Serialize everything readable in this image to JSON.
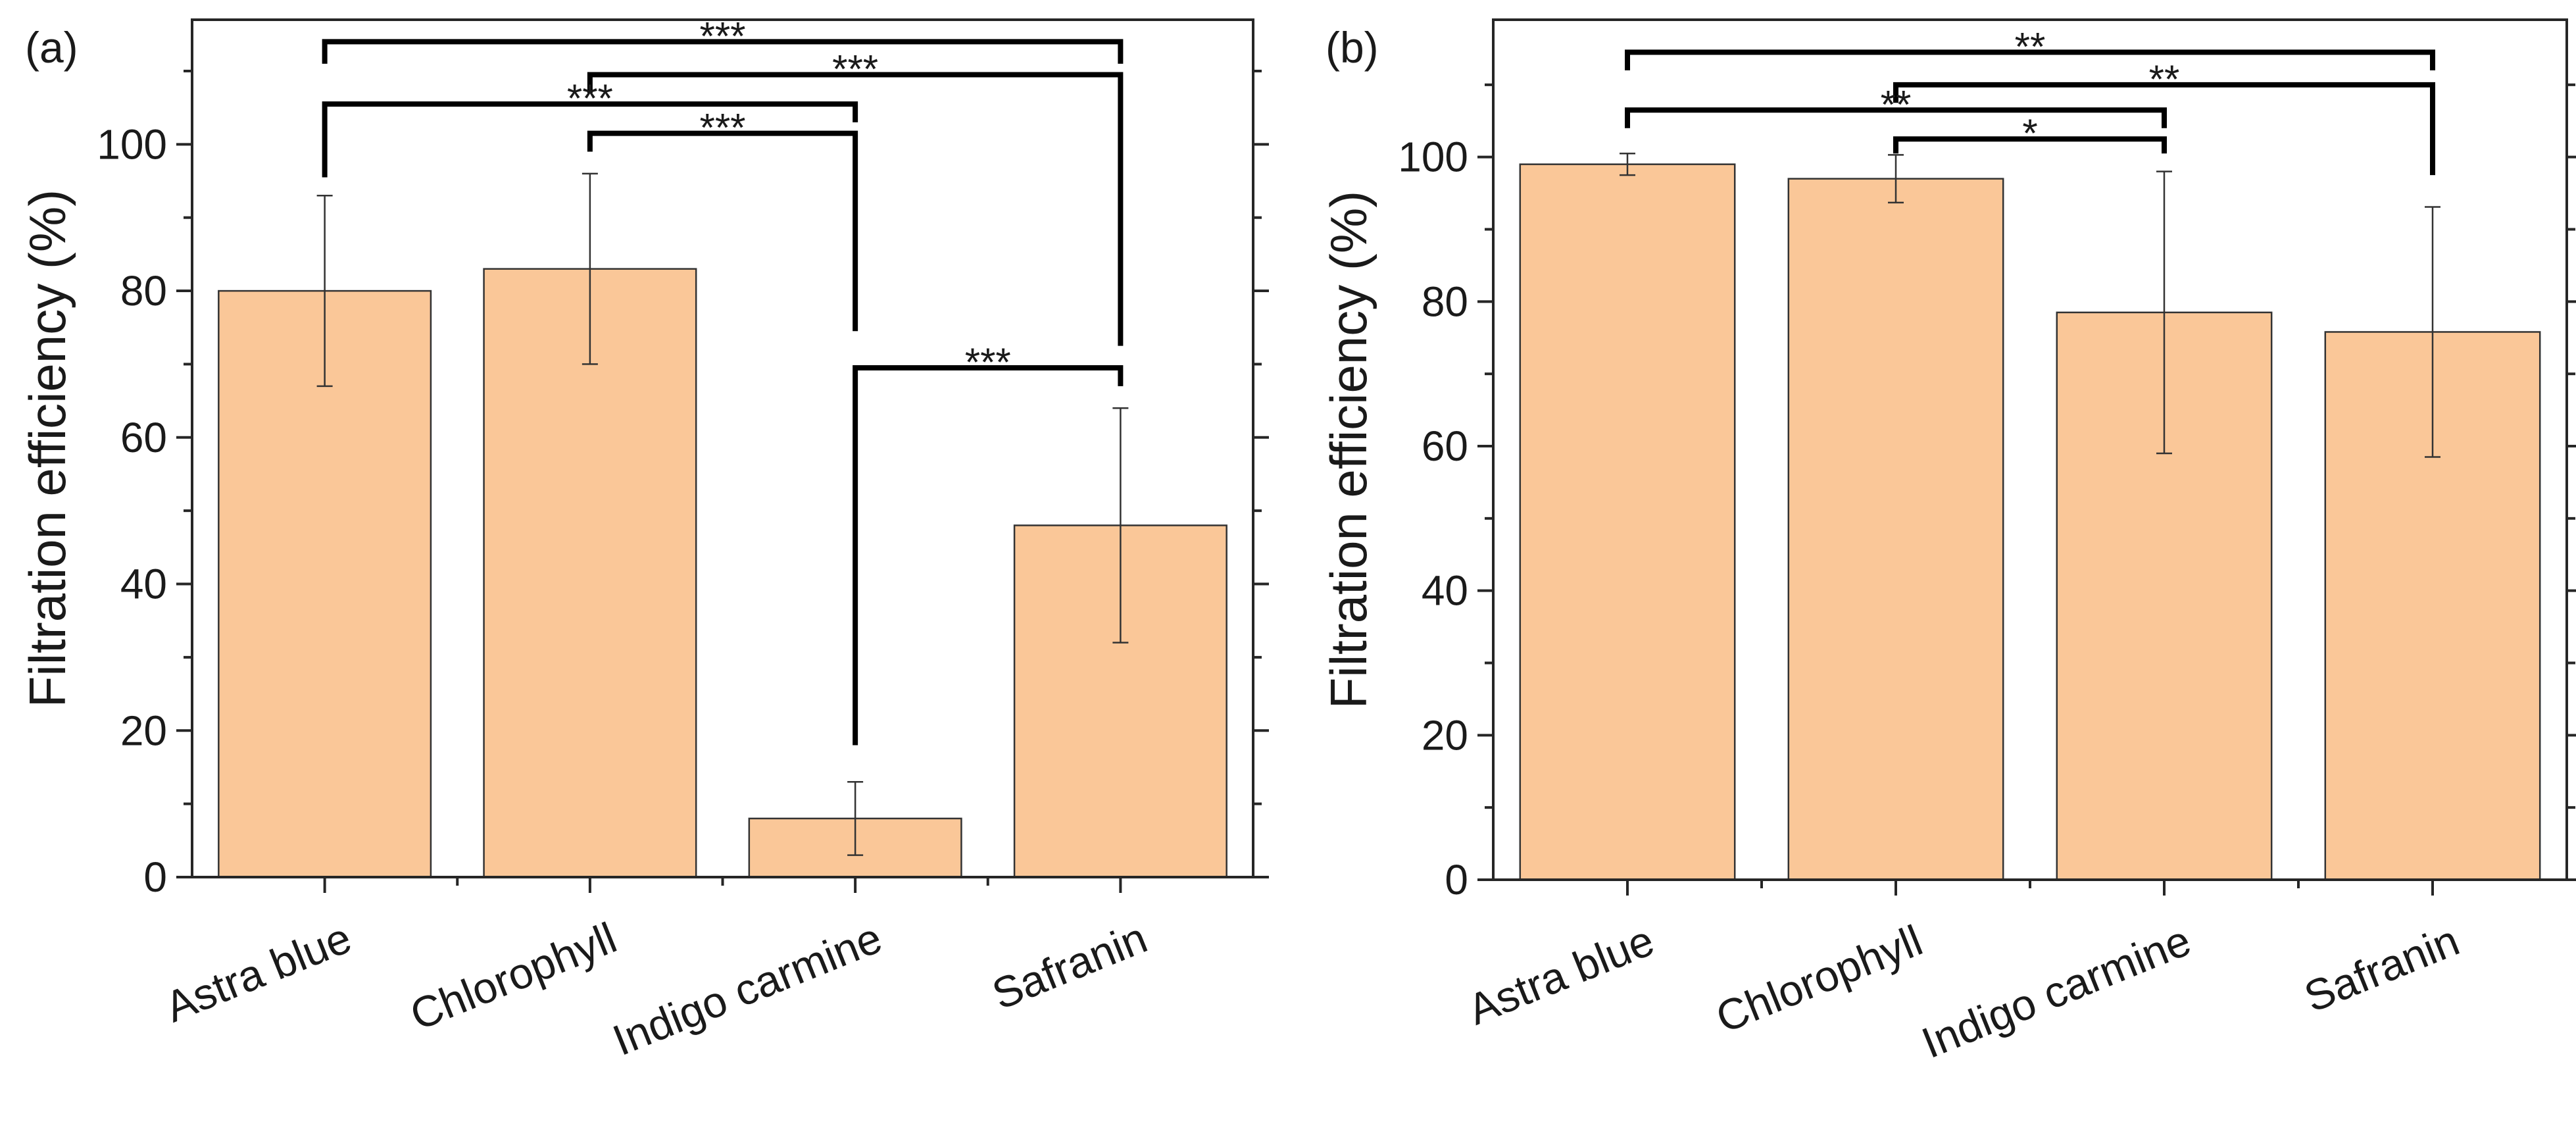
{
  "chart_data": [
    {
      "type": "bar",
      "panel_label": "(a)",
      "title": "",
      "xlabel": "",
      "ylabel": "Filtration efficiency (%)",
      "categories": [
        "Astra blue",
        "Chlorophyll",
        "Indigo carmine",
        "Safranin"
      ],
      "values": [
        80,
        83,
        8,
        48
      ],
      "errors": [
        13,
        13,
        5,
        16
      ],
      "ylim": [
        0,
        117
      ],
      "yticks": [
        0,
        20,
        40,
        60,
        80,
        100
      ],
      "grid": false,
      "bar_color": "#FAC798",
      "significance": [
        {
          "from": 0,
          "to": 3,
          "label": "***",
          "y": 114,
          "left_drop": 111,
          "right_drop": 111
        },
        {
          "from": 1,
          "to": 3,
          "label": "***",
          "y": 109.5,
          "left_drop": 107,
          "right_drop": 72.5
        },
        {
          "from": 0,
          "to": 2,
          "label": "***",
          "y": 105.5,
          "left_drop": 95.5,
          "right_drop": 103
        },
        {
          "from": 1,
          "to": 2,
          "label": "***",
          "y": 101.5,
          "left_drop": 99,
          "right_drop": 74.5
        },
        {
          "from": 2,
          "to": 3,
          "label": "***",
          "y": 69.5,
          "left_drop": 18,
          "right_drop": 67
        }
      ]
    },
    {
      "type": "bar",
      "panel_label": "(b)",
      "title": "",
      "xlabel": "",
      "ylabel": "Filtration efficiency (%)",
      "categories": [
        "Astra blue",
        "Chlorophyll",
        "Indigo carmine",
        "Safranin"
      ],
      "values": [
        99,
        97,
        78.5,
        75.8
      ],
      "errors": [
        1.5,
        3.3,
        19.5,
        17.3
      ],
      "ylim": [
        0,
        119
      ],
      "yticks": [
        0,
        20,
        40,
        60,
        80,
        100
      ],
      "grid": false,
      "bar_color": "#FAC798",
      "significance": [
        {
          "from": 0,
          "to": 3,
          "label": "**",
          "y": 114.5,
          "left_drop": 112,
          "right_drop": 112
        },
        {
          "from": 1,
          "to": 3,
          "label": "**",
          "y": 110,
          "left_drop": 107.5,
          "right_drop": 97.5
        },
        {
          "from": 0,
          "to": 2,
          "label": "**",
          "y": 106.5,
          "left_drop": 104,
          "right_drop": 104
        },
        {
          "from": 1,
          "to": 2,
          "label": "*",
          "y": 102.5,
          "left_drop": 100.5,
          "right_drop": 100.5
        }
      ]
    }
  ]
}
